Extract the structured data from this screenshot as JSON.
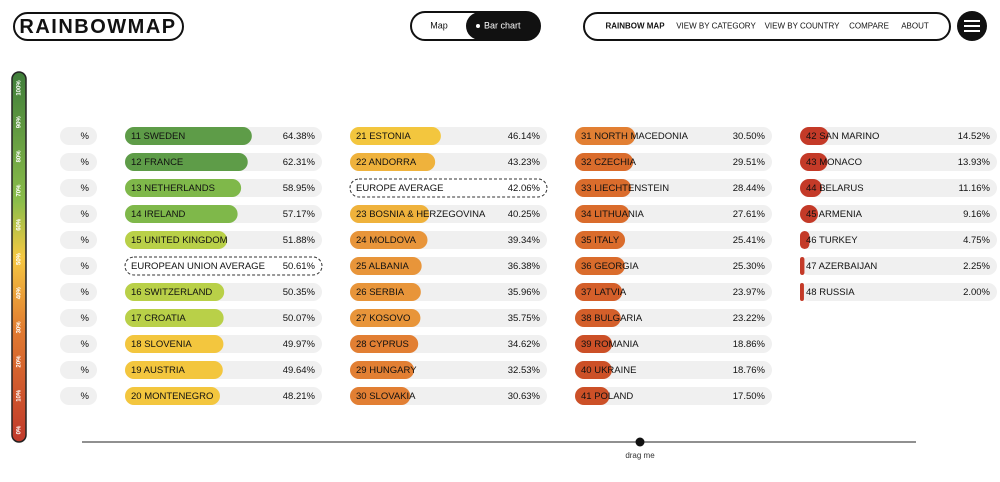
{
  "header": {
    "logo": "RAINBOWMAP",
    "toggle": [
      "Map",
      "Bar chart"
    ],
    "nav": [
      "RAINBOW MAP",
      "VIEW BY CATEGORY",
      "VIEW BY COUNTRY",
      "COMPARE",
      "ABOUT"
    ]
  },
  "scale": [
    "0%",
    "10%",
    "20%",
    "30%",
    "40%",
    "50%",
    "60%",
    "70%",
    "80%",
    "90%",
    "100%"
  ],
  "left_edge": [
    "%",
    "%",
    "%",
    "%",
    "%",
    "%",
    "%",
    "%",
    "%",
    "%",
    "%"
  ],
  "columns": [
    [
      {
        "label": "11 SWEDEN",
        "value": 64.38,
        "value_label": "64.38%"
      },
      {
        "label": "12 FRANCE",
        "value": 62.31,
        "value_label": "62.31%"
      },
      {
        "label": "13 NETHERLANDS",
        "value": 58.95,
        "value_label": "58.95%"
      },
      {
        "label": "14 IRELAND",
        "value": 57.17,
        "value_label": "57.17%"
      },
      {
        "label": "15 UNITED KINGDOM",
        "value": 51.88,
        "value_label": "51.88%"
      },
      {
        "label": "EUROPEAN UNION AVERAGE",
        "value_label": "50.61%"
      },
      {
        "label": "16 SWITZERLAND",
        "value": 50.35,
        "value_label": "50.35%"
      },
      {
        "label": "17 CROATIA",
        "value": 50.07,
        "value_label": "50.07%"
      },
      {
        "label": "18 SLOVENIA",
        "value": 49.97,
        "value_label": "49.97%"
      },
      {
        "label": "19 AUSTRIA",
        "value": 49.64,
        "value_label": "49.64%"
      },
      {
        "label": "20 MONTENEGRO",
        "value": 48.21,
        "value_label": "48.21%"
      }
    ],
    [
      {
        "label": "21 ESTONIA",
        "value": 46.14,
        "value_label": "46.14%"
      },
      {
        "label": "22 ANDORRA",
        "value": 43.23,
        "value_label": "43.23%"
      },
      {
        "label": "EUROPE AVERAGE",
        "value_label": "42.06%"
      },
      {
        "label": "23 BOSNIA & HERZEGOVINA",
        "value": 40.25,
        "value_label": "40.25%"
      },
      {
        "label": "24 MOLDOVA",
        "value": 39.34,
        "value_label": "39.34%"
      },
      {
        "label": "25 ALBANIA",
        "value": 36.38,
        "value_label": "36.38%"
      },
      {
        "label": "26 SERBIA",
        "value": 35.96,
        "value_label": "35.96%"
      },
      {
        "label": "27 KOSOVO",
        "value": 35.75,
        "value_label": "35.75%"
      },
      {
        "label": "28 CYPRUS",
        "value": 34.62,
        "value_label": "34.62%"
      },
      {
        "label": "29 HUNGARY",
        "value": 32.53,
        "value_label": "32.53%"
      },
      {
        "label": "30 SLOVAKIA",
        "value": 30.63,
        "value_label": "30.63%"
      }
    ],
    [
      {
        "label": "31 NORTH MACEDONIA",
        "value": 30.5,
        "value_label": "30.50%"
      },
      {
        "label": "32 CZECHIA",
        "value": 29.51,
        "value_label": "29.51%"
      },
      {
        "label": "33 LIECHTENSTEIN",
        "value": 28.44,
        "value_label": "28.44%"
      },
      {
        "label": "34 LITHUANIA",
        "value": 27.61,
        "value_label": "27.61%"
      },
      {
        "label": "35 ITALY",
        "value": 25.41,
        "value_label": "25.41%"
      },
      {
        "label": "36 GEORGIA",
        "value": 25.3,
        "value_label": "25.30%"
      },
      {
        "label": "37 LATVIA",
        "value": 23.97,
        "value_label": "23.97%"
      },
      {
        "label": "38 BULGARIA",
        "value": 23.22,
        "value_label": "23.22%"
      },
      {
        "label": "39 ROMANIA",
        "value": 18.86,
        "value_label": "18.86%"
      },
      {
        "label": "40 UKRAINE",
        "value": 18.76,
        "value_label": "18.76%"
      },
      {
        "label": "41 POLAND",
        "value": 17.5,
        "value_label": "17.50%"
      }
    ],
    [
      {
        "label": "42 SAN MARINO",
        "value": 14.52,
        "value_label": "14.52%"
      },
      {
        "label": "43 MONACO",
        "value": 13.93,
        "value_label": "13.93%"
      },
      {
        "label": "44 BELARUS",
        "value": 11.16,
        "value_label": "11.16%"
      },
      {
        "label": "45 ARMENIA",
        "value": 9.16,
        "value_label": "9.16%"
      },
      {
        "label": "46 TURKEY",
        "value": 4.75,
        "value_label": "4.75%"
      },
      {
        "label": "47 AZERBAIJAN",
        "value": 2.25,
        "value_label": "2.25%"
      },
      {
        "label": "48 RUSSIA",
        "value": 2.0,
        "value_label": "2.00%"
      }
    ]
  ],
  "slider": {
    "hint": "drag me"
  }
}
